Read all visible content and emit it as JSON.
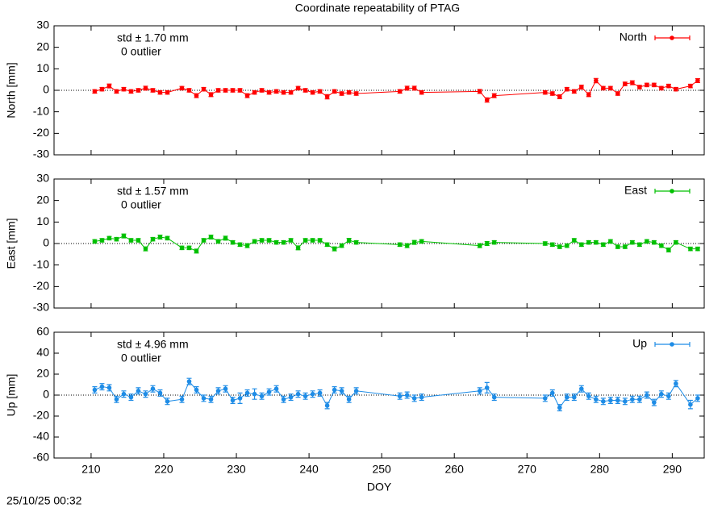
{
  "title": "Coordinate repeatability of PTAG",
  "timestamp": "25/10/25 00:32",
  "chart_data": [
    {
      "type": "line",
      "ylabel": "North [mm]",
      "annotations": [
        "std ± 1.70 mm",
        "0 outlier"
      ],
      "x": [
        210.5,
        211.5,
        212.5,
        213.5,
        214.5,
        215.5,
        216.5,
        217.5,
        218.5,
        219.5,
        220.5,
        222.5,
        223.5,
        224.5,
        225.5,
        226.5,
        227.5,
        228.5,
        229.5,
        230.5,
        231.5,
        232.5,
        233.5,
        234.5,
        235.5,
        236.5,
        237.5,
        238.5,
        239.5,
        240.5,
        241.5,
        242.5,
        243.5,
        244.5,
        245.5,
        246.5,
        252.5,
        253.5,
        254.5,
        255.5,
        263.5,
        264.5,
        265.5,
        272.5,
        273.5,
        274.5,
        275.5,
        276.5,
        277.5,
        278.5,
        279.5,
        280.5,
        281.5,
        282.5,
        283.5,
        284.5,
        285.5,
        286.5,
        287.5,
        288.5,
        289.5,
        290.5,
        292.5,
        293.5
      ],
      "series": [
        {
          "name": "North",
          "color": "#ff0000",
          "values": [
            -0.5,
            0.5,
            2,
            -0.5,
            0.5,
            -0.5,
            0,
            1,
            0,
            -1,
            -1,
            1,
            0,
            -2.5,
            0.5,
            -2,
            0,
            0,
            0,
            0,
            -2.5,
            -1,
            0,
            -1,
            -0.5,
            -1,
            -1,
            1,
            0,
            -1,
            -0.5,
            -3,
            -0.5,
            -1.5,
            -1,
            -1.5,
            -0.5,
            1,
            1,
            -1,
            -0.5,
            -4.5,
            -2.5,
            -1,
            -1.5,
            -3,
            0.5,
            -0.5,
            1.5,
            -2,
            4.5,
            1,
            1,
            -1.5,
            3,
            3.5,
            1.5,
            2.5,
            2.5,
            1,
            2,
            0.5,
            2,
            4.5
          ],
          "errors": [
            0.8,
            0.8,
            0.9,
            0.8,
            0.8,
            0.8,
            0.8,
            0.9,
            0.8,
            0.8,
            0.8,
            0.8,
            0.8,
            0.9,
            0.8,
            0.9,
            0.8,
            0.8,
            0.8,
            0.8,
            0.9,
            0.8,
            0.8,
            0.8,
            0.8,
            0.8,
            0.8,
            0.8,
            0.8,
            0.8,
            0.8,
            1,
            0.8,
            0.8,
            0.8,
            0.8,
            0.8,
            0.9,
            0.9,
            0.8,
            0.9,
            1,
            0.9,
            0.8,
            0.8,
            0.9,
            0.8,
            0.8,
            0.9,
            0.9,
            1,
            0.8,
            0.8,
            0.8,
            0.8,
            0.9,
            0.8,
            0.8,
            0.8,
            0.8,
            0.8,
            0.8,
            0.8,
            0.9
          ]
        }
      ],
      "xlim": [
        204.9,
        294.4
      ],
      "xticks": [
        210,
        220,
        230,
        240,
        250,
        260,
        270,
        280,
        290
      ],
      "ylim": [
        -30,
        30
      ],
      "yticks": [
        -30,
        -20,
        -10,
        0,
        10,
        20,
        30
      ],
      "zero_line": true,
      "legend": "upper right"
    },
    {
      "type": "line",
      "ylabel": "East [mm]",
      "annotations": [
        "std ± 1.57 mm",
        "0 outlier"
      ],
      "x": [
        210.5,
        211.5,
        212.5,
        213.5,
        214.5,
        215.5,
        216.5,
        217.5,
        218.5,
        219.5,
        220.5,
        222.5,
        223.5,
        224.5,
        225.5,
        226.5,
        227.5,
        228.5,
        229.5,
        230.5,
        231.5,
        232.5,
        233.5,
        234.5,
        235.5,
        236.5,
        237.5,
        238.5,
        239.5,
        240.5,
        241.5,
        242.5,
        243.5,
        244.5,
        245.5,
        246.5,
        252.5,
        253.5,
        254.5,
        255.5,
        263.5,
        264.5,
        265.5,
        272.5,
        273.5,
        274.5,
        275.5,
        276.5,
        277.5,
        278.5,
        279.5,
        280.5,
        281.5,
        282.5,
        283.5,
        284.5,
        285.5,
        286.5,
        287.5,
        288.5,
        289.5,
        290.5,
        292.5,
        293.5
      ],
      "series": [
        {
          "name": "East",
          "color": "#00c000",
          "values": [
            1,
            1.5,
            2.5,
            2,
            3.5,
            1.5,
            1.5,
            -2.5,
            2,
            3,
            2.5,
            -2,
            -2,
            -3.5,
            1.5,
            3,
            1,
            2.5,
            0.5,
            -0.5,
            -1,
            1,
            1.5,
            1.5,
            0.5,
            0.5,
            1.5,
            -2,
            1.5,
            1.5,
            1.5,
            -0.5,
            -2.5,
            -1,
            1.5,
            0.5,
            -0.5,
            -1,
            0.5,
            1,
            -1,
            0,
            0.5,
            0,
            -0.5,
            -1.5,
            -1,
            1.5,
            -0.5,
            0.5,
            0.5,
            -0.5,
            1,
            -1.5,
            -1.5,
            0.5,
            -0.5,
            1,
            0.5,
            -1,
            -3,
            0.5,
            -2.5,
            -2.5
          ],
          "errors": [
            0.8,
            0.8,
            0.8,
            0.8,
            0.9,
            0.8,
            0.8,
            0.9,
            0.8,
            0.9,
            0.8,
            0.8,
            0.8,
            0.9,
            0.8,
            0.9,
            0.8,
            0.9,
            0.8,
            0.8,
            0.9,
            0.8,
            0.8,
            0.8,
            0.8,
            0.8,
            0.8,
            0.9,
            0.8,
            0.8,
            0.8,
            0.8,
            0.9,
            0.8,
            0.9,
            0.8,
            0.8,
            0.9,
            0.9,
            0.8,
            0.9,
            0.9,
            0.8,
            0.8,
            0.8,
            0.8,
            0.8,
            0.8,
            0.8,
            0.8,
            0.8,
            0.8,
            0.8,
            0.8,
            0.8,
            0.8,
            0.8,
            0.8,
            0.8,
            0.8,
            0.9,
            0.8,
            0.8,
            0.8
          ]
        }
      ],
      "xlim": [
        204.9,
        294.4
      ],
      "xticks": [
        210,
        220,
        230,
        240,
        250,
        260,
        270,
        280,
        290
      ],
      "ylim": [
        -30,
        30
      ],
      "yticks": [
        -30,
        -20,
        -10,
        0,
        10,
        20,
        30
      ],
      "zero_line": true,
      "legend": "upper right"
    },
    {
      "type": "line",
      "ylabel": "Up [mm]",
      "xlabel": "DOY",
      "annotations": [
        "std ± 4.96 mm",
        "0 outlier"
      ],
      "x": [
        210.5,
        211.5,
        212.5,
        213.5,
        214.5,
        215.5,
        216.5,
        217.5,
        218.5,
        219.5,
        220.5,
        222.5,
        223.5,
        224.5,
        225.5,
        226.5,
        227.5,
        228.5,
        229.5,
        230.5,
        231.5,
        232.5,
        233.5,
        234.5,
        235.5,
        236.5,
        237.5,
        238.5,
        239.5,
        240.5,
        241.5,
        242.5,
        243.5,
        244.5,
        245.5,
        246.5,
        252.5,
        253.5,
        254.5,
        255.5,
        263.5,
        264.5,
        265.5,
        272.5,
        273.5,
        274.5,
        275.5,
        276.5,
        277.5,
        278.5,
        279.5,
        280.5,
        281.5,
        282.5,
        283.5,
        284.5,
        285.5,
        286.5,
        287.5,
        288.5,
        289.5,
        290.5,
        292.5,
        293.5
      ],
      "series": [
        {
          "name": "Up",
          "color": "#1e8ce6",
          "values": [
            5,
            8,
            7,
            -4,
            1,
            -2,
            4,
            1,
            6,
            2,
            -6,
            -4,
            13,
            5,
            -3,
            -4,
            4,
            6,
            -5,
            -3,
            2,
            1,
            -1,
            3,
            6,
            -4,
            -2,
            1,
            -1,
            1,
            2,
            -10,
            5,
            4,
            -4,
            4,
            -1,
            0,
            -3,
            -2,
            4,
            7,
            -2,
            -3,
            2,
            -12,
            -2,
            -2,
            6,
            -1,
            -4,
            -6,
            -5,
            -5,
            -6,
            -4,
            -4,
            0,
            -7,
            1,
            -1,
            11,
            -9,
            -3
          ],
          "errors": [
            3,
            3,
            3,
            3,
            3,
            3,
            3,
            3,
            3,
            3,
            3,
            3,
            3,
            3,
            3,
            3,
            3,
            3,
            3,
            5,
            3,
            5,
            3,
            3,
            3,
            3,
            3,
            3,
            3,
            3,
            3,
            3,
            3,
            3,
            3,
            3,
            3,
            3,
            3,
            3,
            3,
            5,
            3,
            3,
            3,
            3,
            3,
            3,
            3,
            3,
            3,
            3,
            3,
            3,
            3,
            3,
            3,
            3,
            3,
            3,
            3,
            3,
            4,
            3
          ]
        }
      ],
      "xlim": [
        204.9,
        294.4
      ],
      "xticks": [
        210,
        220,
        230,
        240,
        250,
        260,
        270,
        280,
        290
      ],
      "ylim": [
        -60,
        60
      ],
      "yticks": [
        -60,
        -40,
        -20,
        0,
        20,
        40,
        60
      ],
      "zero_line": true,
      "legend": "upper right"
    }
  ]
}
